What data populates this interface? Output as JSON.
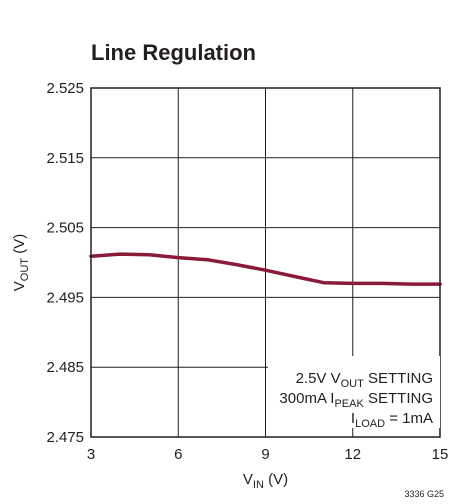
{
  "chart_data": {
    "type": "line",
    "title": "Line Regulation",
    "xlabel": {
      "main": "V",
      "sub": "IN",
      "rest": " (V)"
    },
    "ylabel": {
      "main": "V",
      "sub": "OUT",
      "rest": " (V)"
    },
    "xlim": [
      3,
      15
    ],
    "ylim": [
      2.475,
      2.525
    ],
    "xticks": [
      3,
      6,
      9,
      12,
      15
    ],
    "yticks": [
      "2.475",
      "2.485",
      "2.495",
      "2.505",
      "2.515",
      "2.525"
    ],
    "grid": true,
    "series": [
      {
        "color": "#8b1a3a",
        "x": [
          3,
          4,
          5,
          6,
          7,
          8,
          9,
          10,
          11,
          12,
          13,
          14,
          15
        ],
        "y": [
          2.5009,
          2.5012,
          2.5011,
          2.5007,
          2.5004,
          2.4997,
          2.4989,
          2.498,
          2.4971,
          2.497,
          2.497,
          2.4969,
          2.4969
        ]
      }
    ],
    "annotation": [
      {
        "parts": [
          {
            "t": "2.5V V"
          },
          {
            "t": "OUT",
            "sub": true
          },
          {
            "t": " SETTING"
          }
        ]
      },
      {
        "parts": [
          {
            "t": "300mA I"
          },
          {
            "t": "PEAK",
            "sub": true
          },
          {
            "t": " SETTING"
          }
        ]
      },
      {
        "parts": [
          {
            "t": "I"
          },
          {
            "t": "LOAD",
            "sub": true
          },
          {
            "t": " = 1mA"
          }
        ]
      }
    ],
    "figure_id": "3336 G25"
  }
}
